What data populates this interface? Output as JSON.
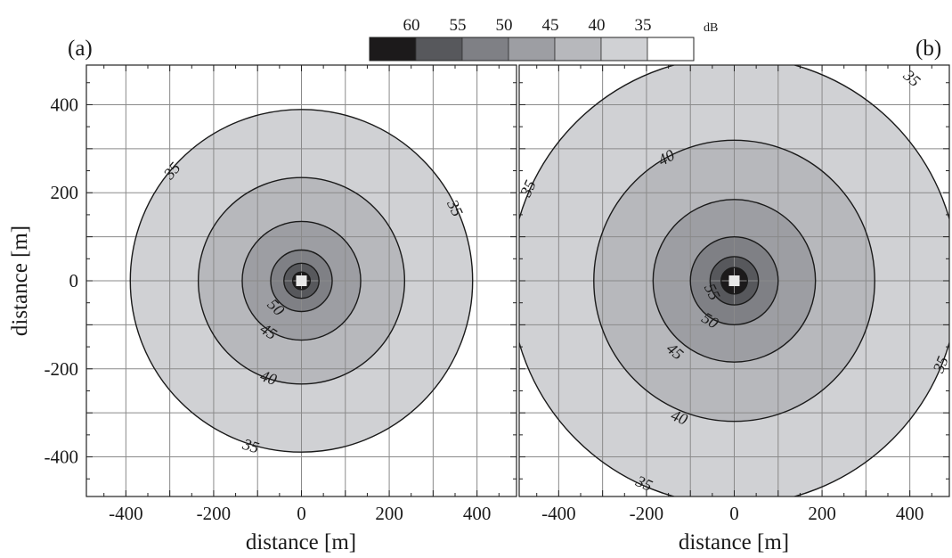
{
  "chart_data": [
    {
      "type": "contour",
      "panel_label": "(a)",
      "xlabel": "distance  [m]",
      "ylabel": "distance  [m]",
      "xlim": [
        -490,
        490
      ],
      "ylim": [
        -490,
        490
      ],
      "xticks": [
        -400,
        -200,
        0,
        200,
        400
      ],
      "yticks": [
        -400,
        -200,
        0,
        200,
        400
      ],
      "grid": true,
      "source": {
        "x": 0,
        "y": 0
      },
      "contours": [
        {
          "level": 35,
          "radius": 390
        },
        {
          "level": 40,
          "radius": 235
        },
        {
          "level": 45,
          "radius": 135
        },
        {
          "level": 50,
          "radius": 70
        },
        {
          "level": 55,
          "radius": 40
        },
        {
          "level": 60,
          "radius": 20
        }
      ],
      "contour_labels": [
        {
          "text": "35",
          "x": -295,
          "y": 250
        },
        {
          "text": "35",
          "x": 350,
          "y": 165
        },
        {
          "text": "50",
          "x": -58,
          "y": -60
        },
        {
          "text": "45",
          "x": -75,
          "y": -115
        },
        {
          "text": "40",
          "x": -75,
          "y": -220
        },
        {
          "text": "35",
          "x": -115,
          "y": -375
        }
      ]
    },
    {
      "type": "contour",
      "panel_label": "(b)",
      "xlabel": "distance  [m]",
      "ylabel": "",
      "xlim": [
        -490,
        490
      ],
      "ylim": [
        -490,
        490
      ],
      "xticks": [
        -400,
        -200,
        0,
        200,
        400
      ],
      "yticks": [],
      "grid": true,
      "source": {
        "x": 0,
        "y": 0
      },
      "contours": [
        {
          "level": 35,
          "radius": 510
        },
        {
          "level": 40,
          "radius": 320
        },
        {
          "level": 45,
          "radius": 185
        },
        {
          "level": 50,
          "radius": 100
        },
        {
          "level": 55,
          "radius": 55
        },
        {
          "level": 60,
          "radius": 30
        }
      ],
      "contour_labels": [
        {
          "text": "35",
          "x": 405,
          "y": 460
        },
        {
          "text": "40",
          "x": -155,
          "y": 280
        },
        {
          "text": "35",
          "x": -470,
          "y": 210
        },
        {
          "text": "55",
          "x": -50,
          "y": -25
        },
        {
          "text": "50",
          "x": -55,
          "y": -90
        },
        {
          "text": "45",
          "x": -135,
          "y": -160
        },
        {
          "text": "40",
          "x": -125,
          "y": -310
        },
        {
          "text": "35",
          "x": 470,
          "y": -190
        },
        {
          "text": "35",
          "x": -205,
          "y": -460
        }
      ]
    }
  ],
  "colorbar": {
    "levels": [
      "60",
      "55",
      "50",
      "45",
      "40",
      "35"
    ],
    "unit": "dB",
    "colors": [
      "#1c1a1b",
      "#57585c",
      "#7f8085",
      "#9d9ea3",
      "#b7b8bc",
      "#d0d1d4",
      "#ffffff"
    ]
  },
  "fill_colors": {
    "60": "#1c1a1b",
    "55": "#57585c",
    "50": "#7f8085",
    "45": "#9d9ea3",
    "40": "#b7b8bc",
    "35": "#d0d1d4",
    "below": "#ffffff",
    "source": "#e8e8e8"
  }
}
